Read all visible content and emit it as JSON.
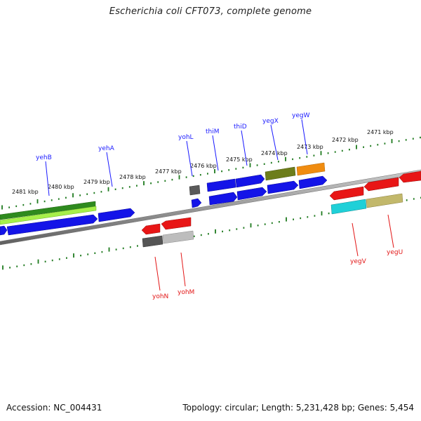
{
  "title": "Escherichia coli CFT073, complete genome",
  "footer": {
    "accession": "Accession: NC_004431",
    "topology": "Topology: circular; Length: 5,231,428 bp; Genes: 5,454"
  },
  "colors": {
    "forward_label": "#1a1aff",
    "reverse_label": "#e21616",
    "tick": "#1f7a1f",
    "backbone": "#8a8a8a"
  },
  "ruler_labels": [
    "2481 kbp",
    "2480 kbp",
    "2479 kbp",
    "2478 kbp",
    "2477 kbp",
    "2476 kbp",
    "2475 kbp",
    "2474 kbp",
    "2473 kbp",
    "2472 kbp",
    "2471 kbp"
  ],
  "forward_gene_labels": [
    "yehB",
    "yehA",
    "yohL",
    "thiM",
    "thiD",
    "yegX",
    "yegW"
  ],
  "reverse_gene_labels": [
    "yohN",
    "yohM",
    "yegV",
    "yegU"
  ]
}
